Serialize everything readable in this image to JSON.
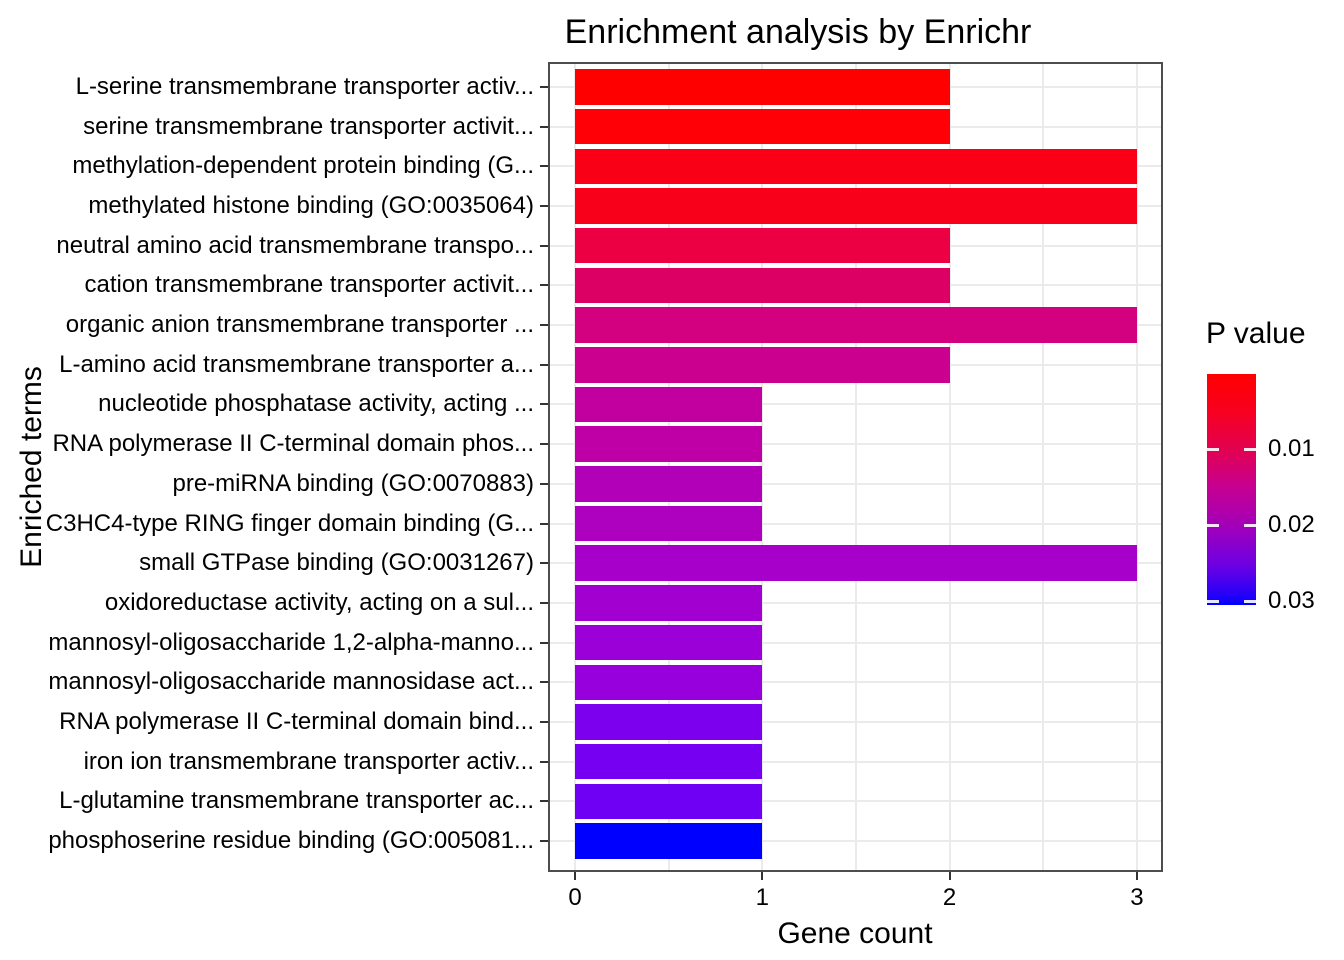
{
  "chart_data": {
    "type": "bar",
    "orientation": "horizontal",
    "title": "Enrichment analysis by Enrichr",
    "xlabel": "Gene count",
    "ylabel": "Enriched terms",
    "xlim": [
      0,
      3
    ],
    "x_major_ticks": [
      "0",
      "1",
      "2",
      "3"
    ],
    "x_major_tick_values": [
      0,
      1,
      2,
      3
    ],
    "x_gridline_step": 0.5,
    "grid": true,
    "panel_background": "#FFFFFF",
    "panel_border_color": "#4D4D4D",
    "gridline_color": "#EBEBEB",
    "categories": [
      "L-serine transmembrane transporter activ...",
      "serine transmembrane transporter activit...",
      "methylation-dependent protein binding (G...",
      "methylated histone binding (GO:0035064)",
      "neutral amino acid transmembrane transpo...",
      "cation transmembrane transporter activit...",
      "organic anion transmembrane transporter ...",
      "L-amino acid transmembrane transporter a...",
      "nucleotide phosphatase activity, acting ...",
      "RNA polymerase II C-terminal domain phos...",
      "pre-miRNA binding (GO:0070883)",
      "C3HC4-type RING finger domain binding (G...",
      "small GTPase binding (GO:0031267)",
      "oxidoreductase activity, acting on a sul...",
      "mannosyl-oligosaccharide 1,2-alpha-manno...",
      "mannosyl-oligosaccharide mannosidase act...",
      "RNA polymerase II C-terminal domain bind...",
      "iron ion transmembrane transporter activ...",
      "L-glutamine transmembrane transporter ac...",
      "phosphoserine residue binding (GO:005081..."
    ],
    "values": [
      2,
      2,
      3,
      3,
      2,
      2,
      3,
      2,
      1,
      1,
      1,
      1,
      3,
      1,
      1,
      1,
      1,
      1,
      1,
      1
    ],
    "bar_colors": [
      "#FF0000",
      "#FE0006",
      "#FA0016",
      "#F9001A",
      "#EC0043",
      "#DC0064",
      "#D30080",
      "#CB008E",
      "#C200A0",
      "#BF00A6",
      "#B200B9",
      "#AE00BF",
      "#A700CA",
      "#A100D0",
      "#9B00D8",
      "#9700DC",
      "#7C00EE",
      "#7600F1",
      "#6F00F4",
      "#0000FF"
    ],
    "legend": {
      "title": "P value",
      "position": "right",
      "tick_labels": [
        "0.01",
        "0.02",
        "0.03"
      ],
      "gradient_top_color": "#FF0000",
      "gradient_bottom_color": "#0000FF",
      "gradient_stops": [
        {
          "pct": 0,
          "color": "#FF0000"
        },
        {
          "pct": 16,
          "color": "#F80020"
        },
        {
          "pct": 32.5,
          "color": "#E3004F"
        },
        {
          "pct": 49,
          "color": "#C60092"
        },
        {
          "pct": 65.5,
          "color": "#A300B8"
        },
        {
          "pct": 82,
          "color": "#7000E0"
        },
        {
          "pct": 95,
          "color": "#2B00F7"
        },
        {
          "pct": 100,
          "color": "#0000FF"
        }
      ]
    }
  }
}
